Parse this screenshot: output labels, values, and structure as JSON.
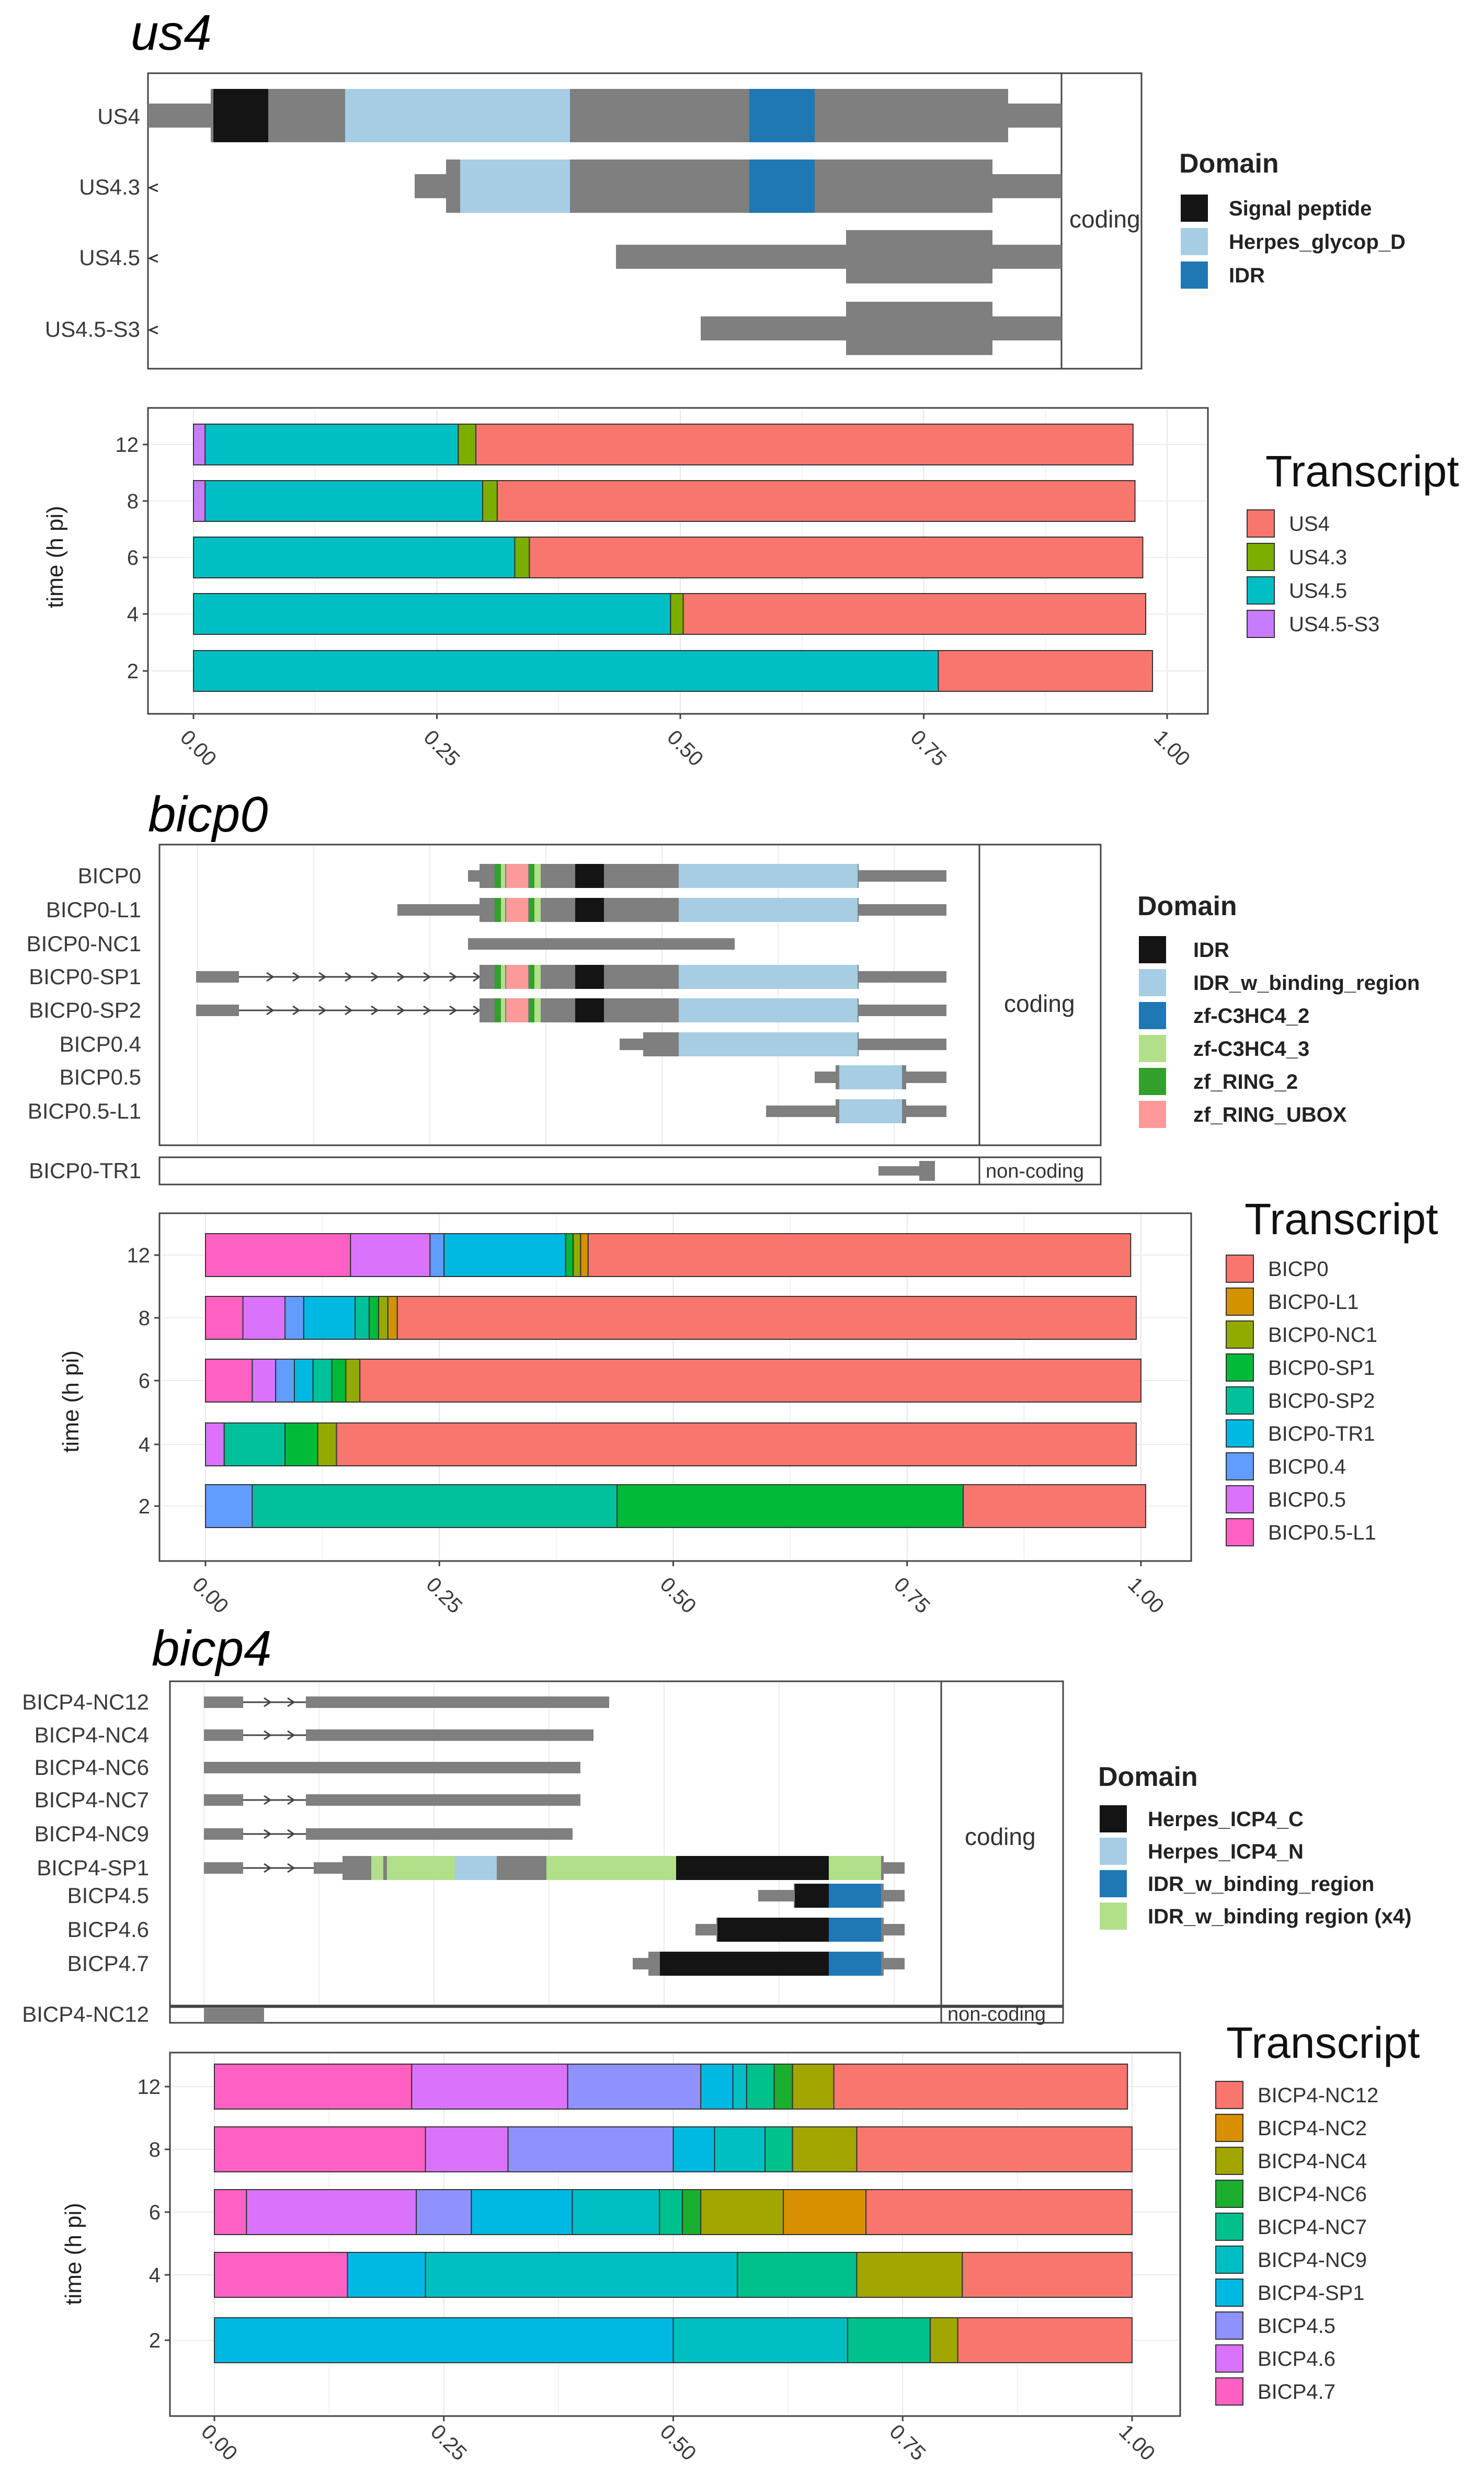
{
  "gene_sections": [
    {
      "title": "us4",
      "structure": {
        "facet_label": "coding",
        "transcripts": [
          {
            "name": "US4",
            "arrow": false
          },
          {
            "name": "US4.3",
            "arrow": true
          },
          {
            "name": "US4.5",
            "arrow": true
          },
          {
            "name": "US4.5-S3",
            "arrow": true
          }
        ],
        "legend": {
          "title": "Domain",
          "items": [
            {
              "label": "Signal peptide",
              "color": "#141414"
            },
            {
              "label": "Herpes_glycop_D",
              "color": "#a6cde3"
            },
            {
              "label": "IDR",
              "color": "#1f77b4"
            }
          ]
        }
      }
    },
    {
      "title": "bicp0",
      "structure": {
        "facet_label": "coding",
        "noncoding_label": "non-coding",
        "transcripts": [
          {
            "name": "BICP0"
          },
          {
            "name": "BICP0-L1"
          },
          {
            "name": "BICP0-NC1"
          },
          {
            "name": "BICP0-SP1"
          },
          {
            "name": "BICP0-SP2"
          },
          {
            "name": "BICP0.4"
          },
          {
            "name": "BICP0.5"
          },
          {
            "name": "BICP0.5-L1"
          }
        ],
        "noncoding_transcripts": [
          {
            "name": "BICP0-TR1"
          }
        ],
        "legend": {
          "title": "Domain",
          "items": [
            {
              "label": "IDR",
              "color": "#141414"
            },
            {
              "label": "IDR_w_binding_region",
              "color": "#a6cde3"
            },
            {
              "label": "zf-C3HC4_2",
              "color": "#1f77b4"
            },
            {
              "label": "zf-C3HC4_3",
              "color": "#b2df8a"
            },
            {
              "label": "zf_RING_2",
              "color": "#33a02c"
            },
            {
              "label": "zf_RING_UBOX",
              "color": "#fb9a99"
            }
          ]
        }
      }
    },
    {
      "title": "bicp4",
      "structure": {
        "facet_label": "coding",
        "noncoding_label": "non-coding",
        "transcripts": [
          {
            "name": "BICP4-NC12"
          },
          {
            "name": "BICP4-NC4"
          },
          {
            "name": "BICP4-NC6"
          },
          {
            "name": "BICP4-NC7"
          },
          {
            "name": "BICP4-NC9"
          },
          {
            "name": "BICP4-SP1"
          },
          {
            "name": "BICP4.5"
          },
          {
            "name": "BICP4.6"
          },
          {
            "name": "BICP4.7"
          }
        ],
        "noncoding_transcripts": [
          {
            "name": "BICP4-NC12"
          }
        ],
        "legend": {
          "title": "Domain",
          "items": [
            {
              "label": "Herpes_ICP4_C",
              "color": "#141414"
            },
            {
              "label": "Herpes_ICP4_N",
              "color": "#a6cde3"
            },
            {
              "label": "IDR_w_binding_region",
              "color": "#1f77b4"
            },
            {
              "label": "IDR_w_binding region (x4)",
              "color": "#b2df8a"
            }
          ]
        }
      }
    }
  ],
  "chart_data": [
    {
      "type": "bar",
      "orientation": "horizontal-stacked",
      "title": "us4",
      "ylabel": "time (h pi)",
      "xlabel": "",
      "categories": [
        "12",
        "8",
        "6",
        "4",
        "2"
      ],
      "xlim": [
        0,
        1
      ],
      "xticks": [
        "0.00",
        "0.25",
        "0.50",
        "0.75",
        "1.00"
      ],
      "legend_title": "Transcript",
      "series": [
        {
          "name": "US4.5-S3",
          "color": "#c77cff",
          "values": [
            0.012,
            0.012,
            0,
            0,
            0
          ]
        },
        {
          "name": "US4.5",
          "color": "#00bfc4",
          "values": [
            0.26,
            0.285,
            0.33,
            0.49,
            0.765
          ]
        },
        {
          "name": "US4.3",
          "color": "#7cae00",
          "values": [
            0.018,
            0.015,
            0.015,
            0.013,
            0
          ]
        },
        {
          "name": "US4",
          "color": "#f8766d",
          "values": [
            0.675,
            0.655,
            0.63,
            0.475,
            0.22
          ]
        }
      ],
      "legend_order": [
        "US4",
        "US4.3",
        "US4.5",
        "US4.5-S3"
      ]
    },
    {
      "type": "bar",
      "orientation": "horizontal-stacked",
      "title": "bicp0",
      "ylabel": "time (h pi)",
      "xlabel": "",
      "categories": [
        "12",
        "8",
        "6",
        "4",
        "2"
      ],
      "xlim": [
        0,
        1
      ],
      "xticks": [
        "0.00",
        "0.25",
        "0.50",
        "0.75",
        "1.00"
      ],
      "legend_title": "Transcript",
      "series": [
        {
          "name": "BICP0.5-L1",
          "color": "#ff61c3",
          "values": [
            0.155,
            0.04,
            0.05,
            0,
            0
          ]
        },
        {
          "name": "BICP0.5",
          "color": "#db72fb",
          "values": [
            0.085,
            0.045,
            0.025,
            0.02,
            0
          ]
        },
        {
          "name": "BICP0.4",
          "color": "#619cff",
          "values": [
            0.015,
            0.02,
            0.02,
            0,
            0.05
          ]
        },
        {
          "name": "BICP0-TR1",
          "color": "#00b9e3",
          "values": [
            0.13,
            0.055,
            0.02,
            0,
            0
          ]
        },
        {
          "name": "BICP0-SP2",
          "color": "#00c19a",
          "values": [
            0,
            0.015,
            0.02,
            0.065,
            0.39
          ]
        },
        {
          "name": "BICP0-SP1",
          "color": "#00ba38",
          "values": [
            0.008,
            0.01,
            0.015,
            0.035,
            0.37
          ]
        },
        {
          "name": "BICP0-NC1",
          "color": "#93aa00",
          "values": [
            0.008,
            0.01,
            0.015,
            0.02,
            0
          ]
        },
        {
          "name": "BICP0-L1",
          "color": "#d39200",
          "values": [
            0.008,
            0.01,
            0,
            0,
            0
          ]
        },
        {
          "name": "BICP0",
          "color": "#f8766d",
          "values": [
            0.58,
            0.79,
            0.835,
            0.855,
            0.195
          ]
        }
      ],
      "legend_order": [
        "BICP0",
        "BICP0-L1",
        "BICP0-NC1",
        "BICP0-SP1",
        "BICP0-SP2",
        "BICP0-TR1",
        "BICP0.4",
        "BICP0.5",
        "BICP0.5-L1"
      ]
    },
    {
      "type": "bar",
      "orientation": "horizontal-stacked",
      "title": "bicp4",
      "ylabel": "time (h pi)",
      "xlabel": "",
      "categories": [
        "12",
        "8",
        "6",
        "4",
        "2"
      ],
      "xlim": [
        0,
        1
      ],
      "xticks": [
        "0.00",
        "0.25",
        "0.50",
        "0.75",
        "1.00"
      ],
      "legend_title": "Transcript",
      "series": [
        {
          "name": "BICP4.7",
          "color": "#ff61c3",
          "values": [
            0.215,
            0.23,
            0.035,
            0.145,
            0
          ]
        },
        {
          "name": "BICP4.6",
          "color": "#db72fb",
          "values": [
            0.17,
            0.09,
            0.185,
            0,
            0
          ]
        },
        {
          "name": "BICP4.5",
          "color": "#8f91ff",
          "values": [
            0.145,
            0.18,
            0.06,
            0,
            0
          ]
        },
        {
          "name": "BICP4-SP1",
          "color": "#00b9e3",
          "values": [
            0.035,
            0.045,
            0.11,
            0.085,
            0.5
          ]
        },
        {
          "name": "BICP4-NC9",
          "color": "#00bfc4",
          "values": [
            0.015,
            0.055,
            0.095,
            0.34,
            0.19
          ]
        },
        {
          "name": "BICP4-NC7",
          "color": "#00c08b",
          "values": [
            0.03,
            0.03,
            0.025,
            0.13,
            0.09
          ]
        },
        {
          "name": "BICP4-NC6",
          "color": "#1aaf2e",
          "values": [
            0.02,
            0,
            0.02,
            0,
            0
          ]
        },
        {
          "name": "BICP4-NC4",
          "color": "#a3a500",
          "values": [
            0.045,
            0.07,
            0.09,
            0.115,
            0.03
          ]
        },
        {
          "name": "BICP4-NC2",
          "color": "#d89000",
          "values": [
            0,
            0,
            0.09,
            0,
            0
          ]
        },
        {
          "name": "BICP4-NC12",
          "color": "#f8766d",
          "values": [
            0.32,
            0.3,
            0.29,
            0.185,
            0.19
          ]
        }
      ],
      "legend_order": [
        "BICP4-NC12",
        "BICP4-NC2",
        "BICP4-NC4",
        "BICP4-NC6",
        "BICP4-NC7",
        "BICP4-NC9",
        "BICP4-SP1",
        "BICP4.5",
        "BICP4.6",
        "BICP4.7"
      ]
    }
  ]
}
